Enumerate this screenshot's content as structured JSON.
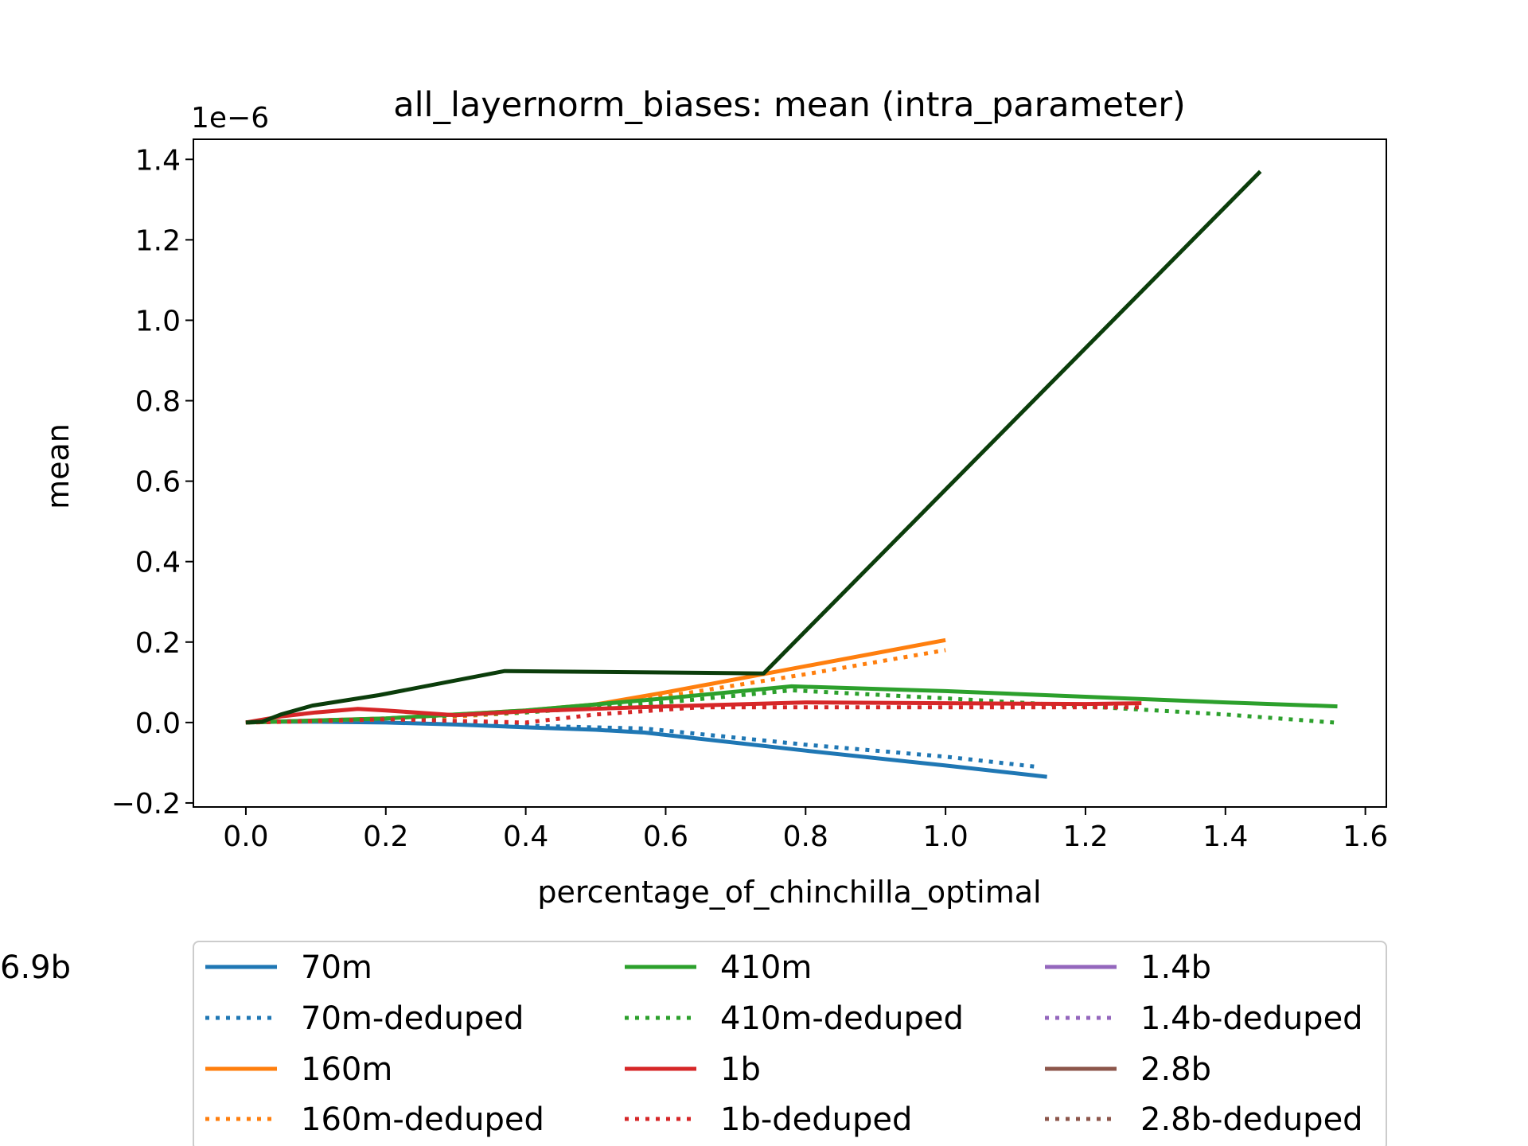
{
  "chart_data": {
    "type": "line",
    "title": "all_layernorm_biases: mean (intra_parameter)",
    "xlabel": "percentage_of_chinchilla_optimal",
    "ylabel": "mean",
    "y_offset_label": "1e−6",
    "xlim": [
      -0.075,
      1.63
    ],
    "ylim": [
      -0.21,
      1.45
    ],
    "x_ticks": [
      0.0,
      0.2,
      0.4,
      0.6,
      0.8,
      1.0,
      1.2,
      1.4,
      1.6
    ],
    "x_tick_labels": [
      "0.0",
      "0.2",
      "0.4",
      "0.6",
      "0.8",
      "1.0",
      "1.2",
      "1.4",
      "1.6"
    ],
    "y_ticks": [
      -0.2,
      0.0,
      0.2,
      0.4,
      0.6,
      0.8,
      1.0,
      1.2,
      1.4
    ],
    "y_tick_labels": [
      "−0.2",
      "0.0",
      "0.2",
      "0.4",
      "0.6",
      "0.8",
      "1.0",
      "1.2",
      "1.4"
    ],
    "grid": false,
    "legend_position": "below",
    "series": [
      {
        "name": "70m",
        "color": "#1f77b4",
        "style": "solid",
        "x": [
          0.0,
          0.02,
          0.05,
          0.1,
          0.2,
          0.3,
          0.4,
          0.5,
          0.57,
          0.8,
          1.0,
          1.145
        ],
        "y": [
          0.0,
          0.001,
          0.002,
          0.002,
          0.0,
          -0.005,
          -0.012,
          -0.018,
          -0.025,
          -0.07,
          -0.107,
          -0.135
        ]
      },
      {
        "name": "70m-deduped",
        "color": "#1f77b4",
        "style": "dotted",
        "x": [
          0.0,
          0.1,
          0.2,
          0.3,
          0.4,
          0.57,
          0.8,
          1.0,
          1.13
        ],
        "y": [
          0.0,
          0.005,
          0.006,
          0.002,
          -0.008,
          -0.015,
          -0.055,
          -0.085,
          -0.11
        ]
      },
      {
        "name": "160m",
        "color": "#ff7f0e",
        "style": "solid",
        "x": [
          0.0,
          0.1,
          0.2,
          0.3,
          0.4,
          0.5,
          0.6,
          0.8,
          1.0
        ],
        "y": [
          0.0,
          0.005,
          0.01,
          0.02,
          0.03,
          0.045,
          0.075,
          0.14,
          0.205
        ]
      },
      {
        "name": "160m-deduped",
        "color": "#ff7f0e",
        "style": "dotted",
        "x": [
          0.0,
          0.1,
          0.2,
          0.3,
          0.4,
          0.5,
          0.6,
          0.8,
          1.0
        ],
        "y": [
          0.0,
          0.003,
          0.008,
          0.015,
          0.025,
          0.04,
          0.065,
          0.12,
          0.18
        ]
      },
      {
        "name": "410m",
        "color": "#2ca02c",
        "style": "solid",
        "x": [
          0.0,
          0.2,
          0.4,
          0.6,
          0.78,
          1.0,
          1.2,
          1.4,
          1.56
        ],
        "y": [
          0.0,
          0.01,
          0.03,
          0.06,
          0.09,
          0.078,
          0.064,
          0.05,
          0.04
        ]
      },
      {
        "name": "410m-deduped",
        "color": "#2ca02c",
        "style": "dotted",
        "x": [
          0.0,
          0.2,
          0.4,
          0.6,
          0.78,
          1.0,
          1.2,
          1.4,
          1.555
        ],
        "y": [
          0.0,
          0.01,
          0.025,
          0.05,
          0.08,
          0.06,
          0.04,
          0.02,
          0.0
        ]
      },
      {
        "name": "1b",
        "color": "#d62728",
        "style": "solid",
        "x": [
          0.0,
          0.05,
          0.1,
          0.16,
          0.2,
          0.3,
          0.4,
          0.6,
          0.8,
          1.0,
          1.2,
          1.28
        ],
        "y": [
          0.0,
          0.015,
          0.025,
          0.034,
          0.03,
          0.018,
          0.028,
          0.04,
          0.05,
          0.048,
          0.046,
          0.048
        ]
      },
      {
        "name": "1b-deduped",
        "color": "#d62728",
        "style": "dotted",
        "x": [
          0.0,
          0.2,
          0.4,
          0.5,
          0.65,
          0.8,
          1.0,
          1.28
        ],
        "y": [
          0.0,
          0.008,
          0.0,
          0.02,
          0.038,
          0.038,
          0.038,
          0.038
        ]
      },
      {
        "name": "1.4b",
        "color": "#9467bd",
        "style": "solid",
        "x": [],
        "y": []
      },
      {
        "name": "1.4b-deduped",
        "color": "#9467bd",
        "style": "dotted",
        "x": [],
        "y": []
      },
      {
        "name": "2.8b",
        "color": "#8c564b",
        "style": "solid",
        "x": [],
        "y": []
      },
      {
        "name": "2.8b-deduped",
        "color": "#8c564b",
        "style": "dotted",
        "x": [],
        "y": []
      },
      {
        "name": "6.9b",
        "color": "#0b3d0b",
        "style": "solid",
        "x": [
          0.0,
          0.023,
          0.05,
          0.095,
          0.19,
          0.37,
          0.74,
          1.45
        ],
        "y": [
          0.0,
          0.002,
          0.02,
          0.042,
          0.068,
          0.128,
          0.122,
          1.37
        ]
      }
    ]
  }
}
